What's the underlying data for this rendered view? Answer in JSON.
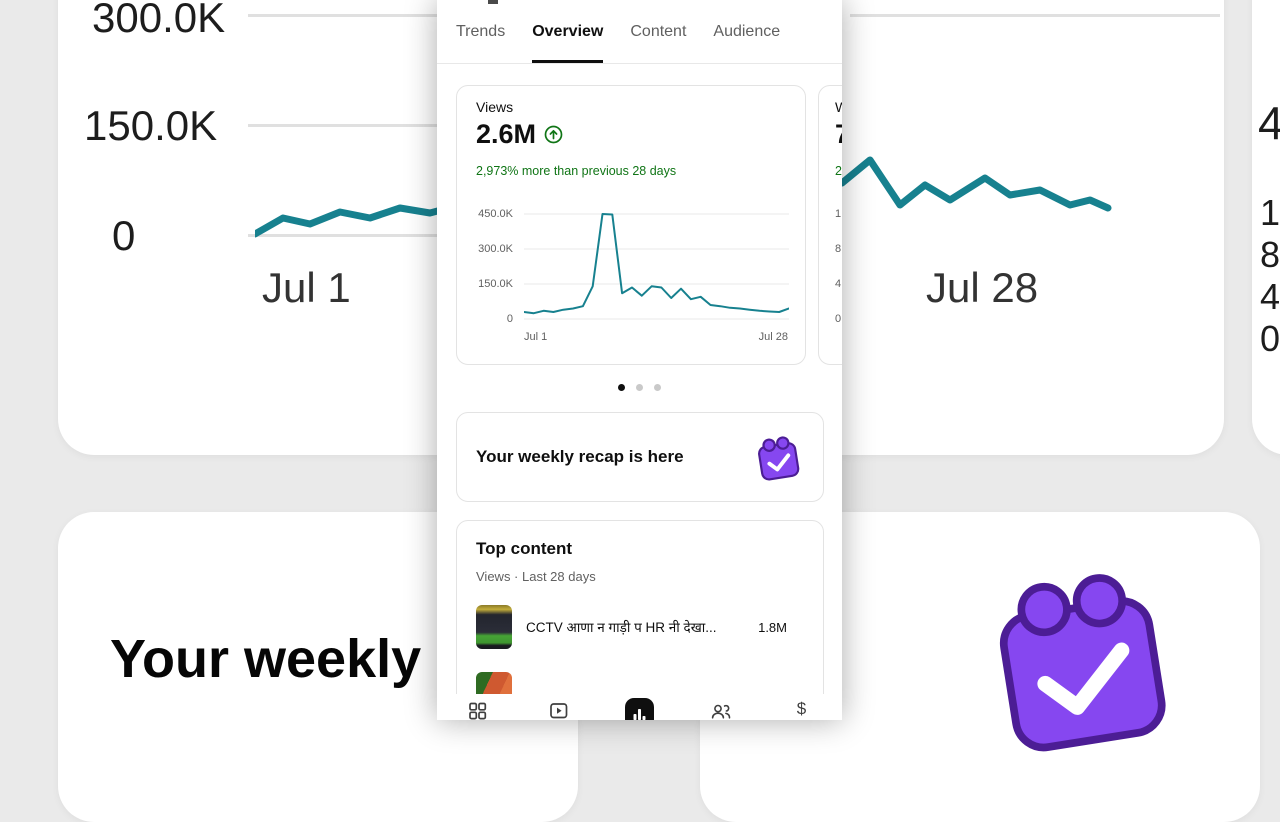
{
  "colors": {
    "teal": "#17818f",
    "green": "#107516",
    "purple": "#8647f0",
    "purple_dark": "#4c1d95"
  },
  "tabs": {
    "items": [
      {
        "label": "Trends",
        "active": false
      },
      {
        "label": "Overview",
        "active": true
      },
      {
        "label": "Content",
        "active": false
      },
      {
        "label": "Audience",
        "active": false
      }
    ]
  },
  "views_card": {
    "label": "Views",
    "value": "2.6M",
    "delta": "2,973% more than previous 28 days",
    "y_ticks": [
      "450.0K",
      "300.0K",
      "150.0K",
      "0"
    ],
    "x_start": "Jul 1",
    "x_end": "Jul 28"
  },
  "chart_data": {
    "type": "line",
    "title": "Views",
    "x_label_start": "Jul 1",
    "x_label_end": "Jul 28",
    "unit": "thousands of views per day",
    "ylim": [
      0,
      450
    ],
    "y_tick_labels": [
      "450.0K",
      "300.0K",
      "150.0K",
      "0"
    ],
    "values_k": [
      30,
      25,
      35,
      30,
      40,
      45,
      55,
      140,
      450,
      448,
      110,
      135,
      100,
      140,
      135,
      90,
      130,
      85,
      95,
      60,
      55,
      48,
      45,
      40,
      35,
      32,
      30,
      45
    ],
    "legend_position": "none",
    "grid": true
  },
  "peek_card": {
    "label_fragment": "W",
    "value_fragment": "7",
    "delta_fragment": "2",
    "y_tick_fragments": [
      "1",
      "8",
      "4",
      "0"
    ]
  },
  "carousel": {
    "dots": 3,
    "active_dot": 0
  },
  "recap_card": {
    "title": "Your weekly recap is here"
  },
  "top_content": {
    "title": "Top content",
    "subtitle": "Views · Last 28 days",
    "items": [
      {
        "title": "CCTV आणा न गाड़ी प HR नी देखा...",
        "views": "1.8M"
      }
    ]
  },
  "bottom_nav": {
    "items": [
      {
        "name": "dashboard",
        "active": false
      },
      {
        "name": "content",
        "active": false
      },
      {
        "name": "analytics",
        "active": true
      },
      {
        "name": "community",
        "active": false
      },
      {
        "name": "earn",
        "active": false
      }
    ]
  },
  "background": {
    "left": {
      "y_ticks": [
        "300.0K",
        "150.0K",
        "0"
      ],
      "x_label": "Jul 1",
      "recap_fragment": "Your weekly"
    },
    "right": {
      "x_label": "Jul 28",
      "tick_fragments": [
        "4",
        "1",
        "8",
        "4",
        "0"
      ]
    }
  }
}
